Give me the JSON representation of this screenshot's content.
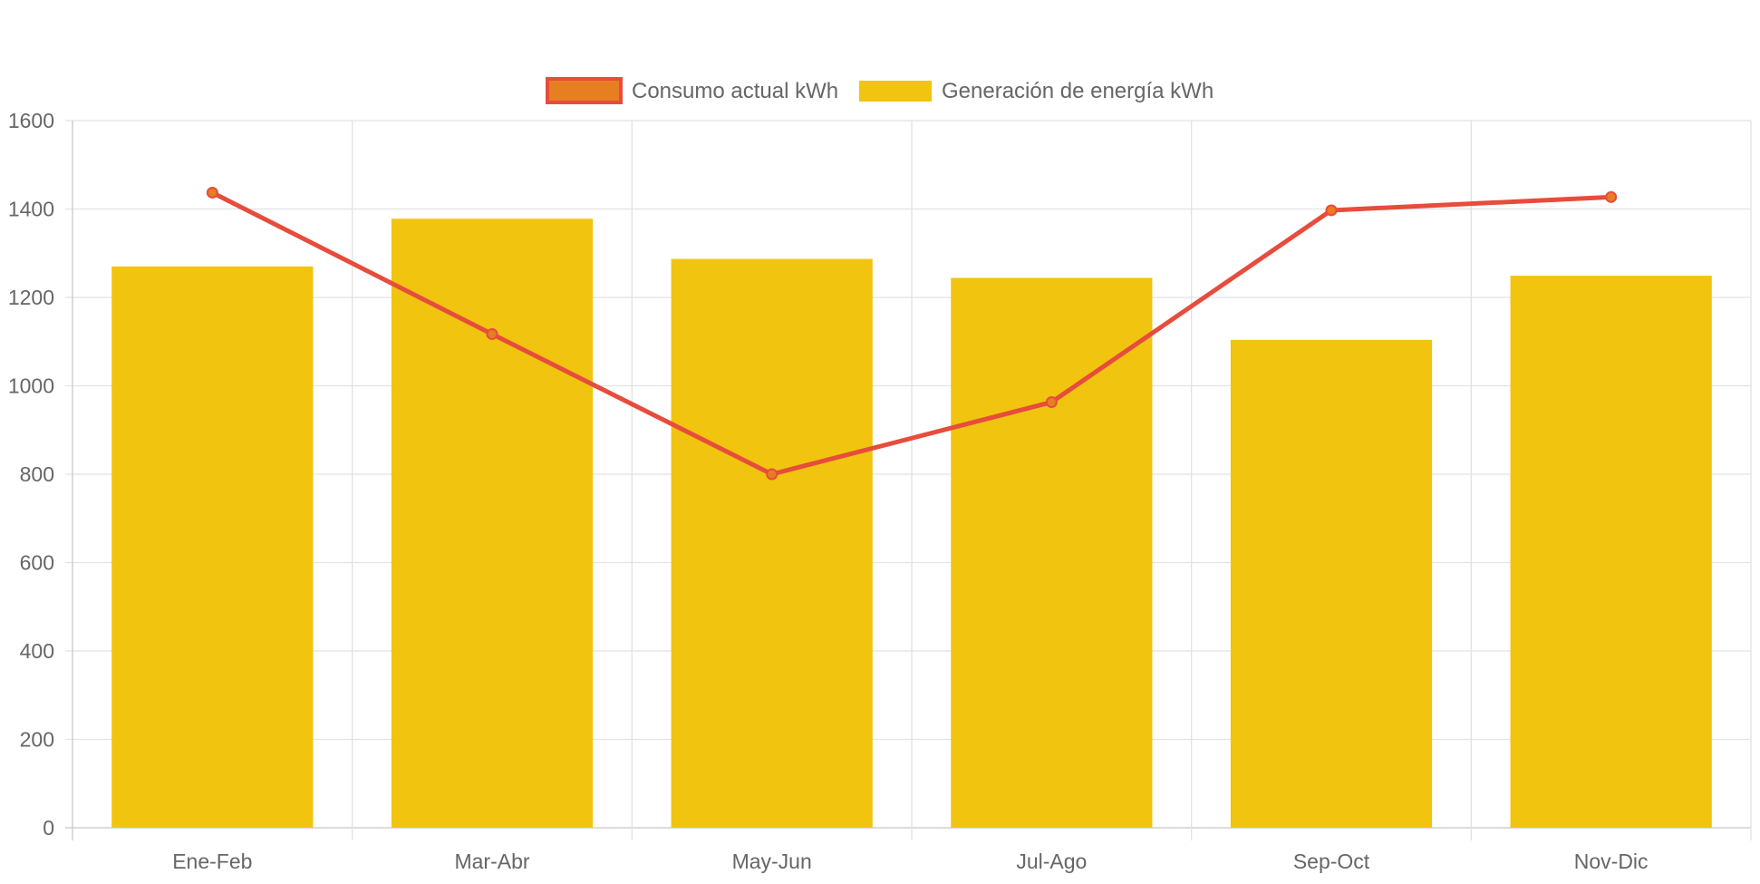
{
  "chart_data": {
    "type": "bar",
    "title": "",
    "xlabel": "",
    "ylabel": "",
    "categories": [
      "Ene-Feb",
      "Mar-Abr",
      "May-Jun",
      "Jul-Ago",
      "Sep-Oct",
      "Nov-Dic"
    ],
    "ylim": [
      0,
      1600
    ],
    "yticks": [
      0,
      200,
      400,
      600,
      800,
      1000,
      1200,
      1400,
      1600
    ],
    "grid": true,
    "legend_position": "top-center",
    "series": [
      {
        "name": "Consumo actual kWh",
        "type": "line",
        "color": "#e74c3c",
        "point_color": "#e67e22",
        "values": [
          1437,
          1117,
          800,
          963,
          1397,
          1427
        ]
      },
      {
        "name": "Generación de energía kWh",
        "type": "bar",
        "color": "#f1c40f",
        "values": [
          1270,
          1378,
          1287,
          1244,
          1104,
          1249
        ]
      }
    ]
  }
}
